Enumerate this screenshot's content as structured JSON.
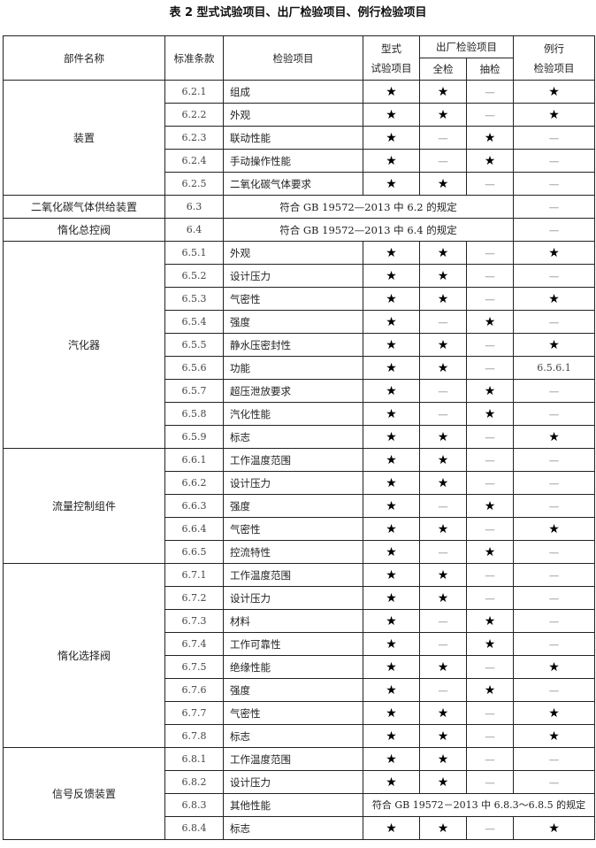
{
  "title": "表 2   型式试验项目、出厂检验项目、例行检验项目",
  "header": {
    "part_name": "部件名称",
    "clause": "标准条款",
    "item": "检验项目",
    "type_test": "型式\n试验项目",
    "factory": "出厂检验项目",
    "full": "全检",
    "sample": "抽检",
    "routine": "例行\n检验项目"
  },
  "marks": {
    "star": "★",
    "dash": "—"
  },
  "groups": [
    {
      "name": "装置",
      "rows": [
        {
          "clause": "6.2.1",
          "item": "组成",
          "type": "★",
          "full": "★",
          "sample": "—",
          "routine": "★"
        },
        {
          "clause": "6.2.2",
          "item": "外观",
          "type": "★",
          "full": "★",
          "sample": "—",
          "routine": "★"
        },
        {
          "clause": "6.2.3",
          "item": "联动性能",
          "type": "★",
          "full": "—",
          "sample": "★",
          "routine": "—"
        },
        {
          "clause": "6.2.4",
          "item": "手动操作性能",
          "type": "★",
          "full": "—",
          "sample": "★",
          "routine": "—"
        },
        {
          "clause": "6.2.5",
          "item": "二氧化碳气体要求",
          "type": "★",
          "full": "★",
          "sample": "—",
          "routine": "—"
        }
      ]
    },
    {
      "name": "二氧化碳气体供给装置",
      "rows": [
        {
          "clause": "6.3",
          "span_item": "符合 GB 19572—2013 中 6.2 的规定",
          "routine": "—"
        }
      ]
    },
    {
      "name": "惰化总控阀",
      "rows": [
        {
          "clause": "6.4",
          "span_item": "符合 GB 19572—2013 中 6.4 的规定",
          "routine": "—"
        }
      ]
    },
    {
      "name": "汽化器",
      "rows": [
        {
          "clause": "6.5.1",
          "item": "外观",
          "type": "★",
          "full": "★",
          "sample": "—",
          "routine": "★"
        },
        {
          "clause": "6.5.2",
          "item": "设计压力",
          "type": "★",
          "full": "★",
          "sample": "—",
          "routine": "—"
        },
        {
          "clause": "6.5.3",
          "item": "气密性",
          "type": "★",
          "full": "★",
          "sample": "—",
          "routine": "★"
        },
        {
          "clause": "6.5.4",
          "item": "强度",
          "type": "★",
          "full": "—",
          "sample": "★",
          "routine": "—"
        },
        {
          "clause": "6.5.5",
          "item": "静水压密封性",
          "type": "★",
          "full": "★",
          "sample": "—",
          "routine": "★"
        },
        {
          "clause": "6.5.6",
          "item": "功能",
          "type": "★",
          "full": "★",
          "sample": "—",
          "routine": "6.5.6.1"
        },
        {
          "clause": "6.5.7",
          "item": "超压泄放要求",
          "type": "★",
          "full": "—",
          "sample": "★",
          "routine": "—"
        },
        {
          "clause": "6.5.8",
          "item": "汽化性能",
          "type": "★",
          "full": "—",
          "sample": "★",
          "routine": "—"
        },
        {
          "clause": "6.5.9",
          "item": "标志",
          "type": "★",
          "full": "★",
          "sample": "—",
          "routine": "★"
        }
      ]
    },
    {
      "name": "流量控制组件",
      "rows": [
        {
          "clause": "6.6.1",
          "item": "工作温度范围",
          "type": "★",
          "full": "★",
          "sample": "—",
          "routine": "—"
        },
        {
          "clause": "6.6.2",
          "item": "设计压力",
          "type": "★",
          "full": "★",
          "sample": "—",
          "routine": "—"
        },
        {
          "clause": "6.6.3",
          "item": "强度",
          "type": "★",
          "full": "—",
          "sample": "★",
          "routine": "—"
        },
        {
          "clause": "6.6.4",
          "item": "气密性",
          "type": "★",
          "full": "★",
          "sample": "—",
          "routine": "★"
        },
        {
          "clause": "6.6.5",
          "item": "控流特性",
          "type": "★",
          "full": "—",
          "sample": "★",
          "routine": "—"
        }
      ]
    },
    {
      "name": "惰化选择阀",
      "rows": [
        {
          "clause": "6.7.1",
          "item": "工作温度范围",
          "type": "★",
          "full": "★",
          "sample": "—",
          "routine": "—"
        },
        {
          "clause": "6.7.2",
          "item": "设计压力",
          "type": "★",
          "full": "★",
          "sample": "—",
          "routine": "—"
        },
        {
          "clause": "6.7.3",
          "item": "材料",
          "type": "★",
          "full": "—",
          "sample": "★",
          "routine": "—"
        },
        {
          "clause": "6.7.4",
          "item": "工作可靠性",
          "type": "★",
          "full": "—",
          "sample": "★",
          "routine": "—"
        },
        {
          "clause": "6.7.5",
          "item": "绝缘性能",
          "type": "★",
          "full": "★",
          "sample": "—",
          "routine": "★"
        },
        {
          "clause": "6.7.6",
          "item": "强度",
          "type": "★",
          "full": "—",
          "sample": "★",
          "routine": "—"
        },
        {
          "clause": "6.7.7",
          "item": "气密性",
          "type": "★",
          "full": "★",
          "sample": "—",
          "routine": "★"
        },
        {
          "clause": "6.7.8",
          "item": "标志",
          "type": "★",
          "full": "★",
          "sample": "—",
          "routine": "★"
        }
      ]
    },
    {
      "name": "信号反馈装置",
      "rows": [
        {
          "clause": "6.8.1",
          "item": "工作温度范围",
          "type": "★",
          "full": "★",
          "sample": "—",
          "routine": "—"
        },
        {
          "clause": "6.8.2",
          "item": "设计压力",
          "type": "★",
          "full": "★",
          "sample": "—",
          "routine": "—"
        },
        {
          "clause": "6.8.3",
          "item": "其他性能",
          "span_result": "符合 GB 19572－2013 中 6.8.3～6.8.5 的规定"
        },
        {
          "clause": "6.8.4",
          "item": "标志",
          "type": "★",
          "full": "★",
          "sample": "—",
          "routine": "★"
        }
      ]
    }
  ]
}
